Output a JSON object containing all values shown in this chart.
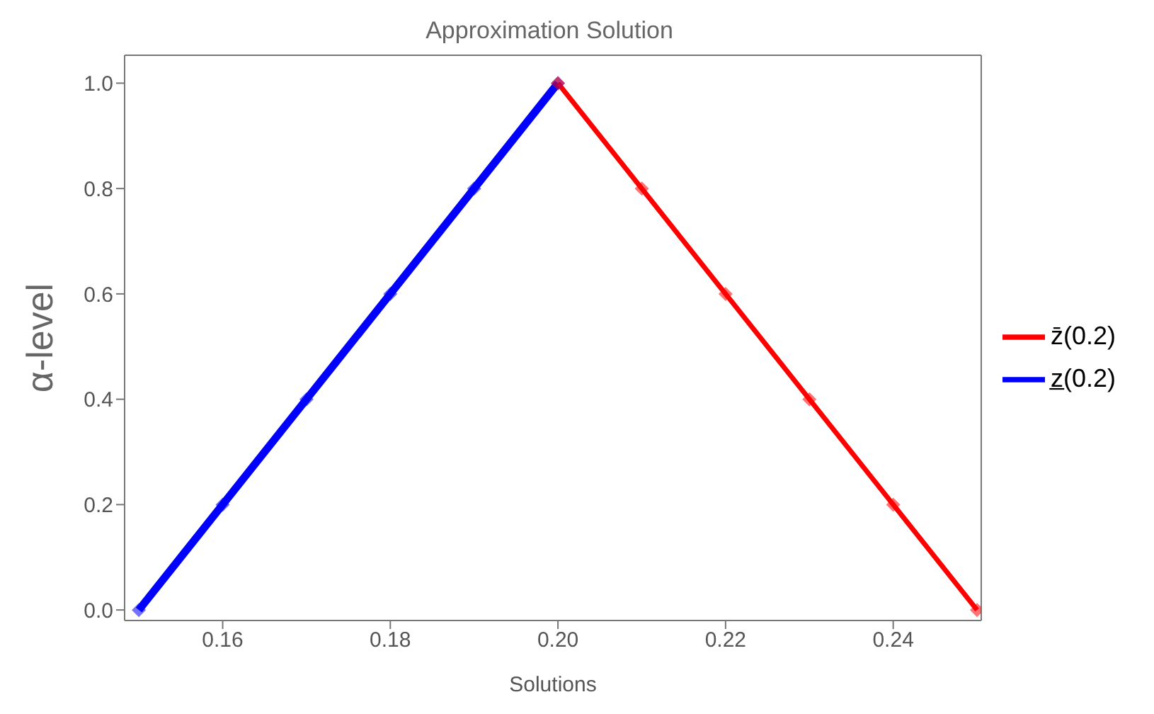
{
  "chart_data": {
    "type": "line",
    "title": "Approximation Solution",
    "xlabel": "Solutions",
    "ylabel": "α-level",
    "xlim": [
      0.1483,
      0.2505
    ],
    "ylim": [
      -0.02,
      1.053
    ],
    "xticks": [
      {
        "value": 0.16,
        "label": "0.16"
      },
      {
        "value": 0.18,
        "label": "0.18"
      },
      {
        "value": 0.2,
        "label": "0.20"
      },
      {
        "value": 0.22,
        "label": "0.22"
      },
      {
        "value": 0.24,
        "label": "0.24"
      }
    ],
    "yticks": [
      {
        "value": 0,
        "label": "0.0"
      },
      {
        "value": 0.2,
        "label": "0.2"
      },
      {
        "value": 0.4,
        "label": "0.4"
      },
      {
        "value": 0.6,
        "label": "0.6"
      },
      {
        "value": 0.8,
        "label": "0.8"
      },
      {
        "value": 1,
        "label": "1.0"
      }
    ],
    "series": [
      {
        "name": "z̲(0.2)",
        "color": "#0000ff",
        "x": [
          0.15,
          0.16,
          0.17,
          0.18,
          0.19,
          0.2
        ],
        "values": [
          0,
          0.2,
          0.4,
          0.6,
          0.8,
          1
        ]
      },
      {
        "name": "z̄(0.2)",
        "color": "#ff0000",
        "x": [
          0.2,
          0.21,
          0.22,
          0.23,
          0.24,
          0.25
        ],
        "values": [
          1,
          0.8,
          0.6,
          0.4,
          0.2,
          0
        ]
      }
    ],
    "marker": "diamond",
    "line_style": "solid",
    "legend": "right",
    "grid": false
  }
}
